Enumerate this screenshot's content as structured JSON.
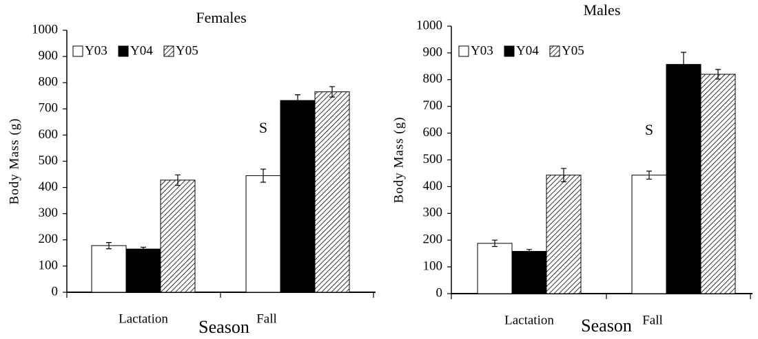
{
  "chart_data": [
    {
      "type": "bar",
      "title": "Females",
      "x_label": "Season",
      "y_label": "Body Mass (g)",
      "categories": [
        "Lactation",
        "Fall"
      ],
      "series": [
        {
          "name": "Y03",
          "color": "#ffffff",
          "values": [
            178,
            445
          ],
          "errors": [
            12,
            25
          ]
        },
        {
          "name": "Y04",
          "color": "#000000",
          "values": [
            165,
            732
          ],
          "errors": [
            7,
            22
          ]
        },
        {
          "name": "Y05",
          "color": "#ffffff",
          "pattern": "diagonal-hatch",
          "values": [
            428,
            765
          ],
          "errors": [
            20,
            20
          ]
        }
      ],
      "annotation": "S",
      "ylim": [
        0,
        1000
      ],
      "yticks": [
        0,
        100,
        200,
        300,
        400,
        500,
        600,
        700,
        800,
        900,
        1000
      ],
      "grid": false,
      "legend": "top-left"
    },
    {
      "type": "bar",
      "title": "Males",
      "x_label": "Season",
      "y_label": "Body Mass (g)",
      "categories": [
        "Lactation",
        "Fall"
      ],
      "series": [
        {
          "name": "Y03",
          "color": "#ffffff",
          "values": [
            188,
            443
          ],
          "errors": [
            12,
            15
          ]
        },
        {
          "name": "Y04",
          "color": "#000000",
          "values": [
            158,
            857
          ],
          "errors": [
            7,
            45
          ]
        },
        {
          "name": "Y05",
          "color": "#ffffff",
          "pattern": "diagonal-hatch",
          "values": [
            443,
            820
          ],
          "errors": [
            25,
            18
          ]
        }
      ],
      "annotation": "S",
      "ylim": [
        0,
        1000
      ],
      "yticks": [
        0,
        100,
        200,
        300,
        400,
        500,
        600,
        700,
        800,
        900,
        1000
      ],
      "grid": false,
      "legend": "top-left"
    }
  ]
}
